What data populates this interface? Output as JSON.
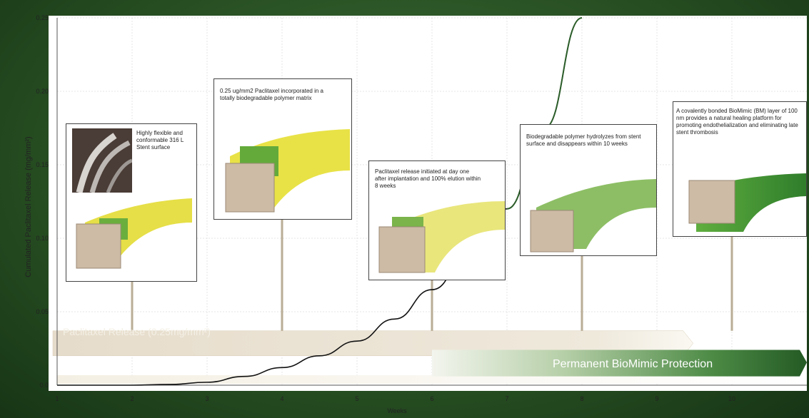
{
  "chart_data": {
    "type": "line",
    "title": "",
    "xlabel": "Weeks",
    "ylabel": "Cumulated Paclitaxel Release (mg/mm²)",
    "xlim": [
      1,
      11
    ],
    "ylim": [
      0,
      0.25
    ],
    "x_ticks": [
      "1",
      "2",
      "3",
      "4",
      "5",
      "6",
      "7",
      "8",
      "9",
      "10"
    ],
    "y_ticks": [
      "0.0",
      "0.05",
      "0.10",
      "0.15",
      "0.20",
      "0.25"
    ],
    "grid": true,
    "series": [
      {
        "x": [
          1,
          2,
          2.5,
          3,
          3.5,
          4,
          4.5,
          5,
          5.5,
          6,
          6.5,
          7,
          7.5,
          8
        ],
        "y": [
          0.0,
          0.0,
          0.0005,
          0.002,
          0.006,
          0.012,
          0.02,
          0.03,
          0.045,
          0.065,
          0.09,
          0.12,
          0.175,
          0.25
        ]
      }
    ],
    "colors": {
      "curve_black": "#111111",
      "curve_green": "#2c5e2a"
    }
  },
  "annotations": [
    {
      "text": "Highly flexible and conformable 316 L Stent surface",
      "anchor_week": 2
    },
    {
      "text": "0.25 ug/mm2 Paclitaxel incorporated in a totally biodegradable polymer matrix",
      "anchor_week": 4
    },
    {
      "text": "Paclitaxel release initiated at day one after implantation and 100% elution within 8 weeks",
      "anchor_week": 6
    },
    {
      "text": "Biodegradable polymer hydrolyzes from stent surface and disappears within 10 weeks",
      "anchor_week": 8
    },
    {
      "text": "A covalently bonded BioMimic (BM) layer of 100 nm provides a natural healing platform for promoting endothelialization and eliminating late stent thrombosis",
      "anchor_week": 10
    }
  ],
  "bands": {
    "release": {
      "label": "Paclitaxel Release (0.25mg/mm²)",
      "color": "#e9e2d2"
    },
    "protection": {
      "label": "Permanent BioMimic Protection",
      "color": "#2e6b2d"
    }
  }
}
